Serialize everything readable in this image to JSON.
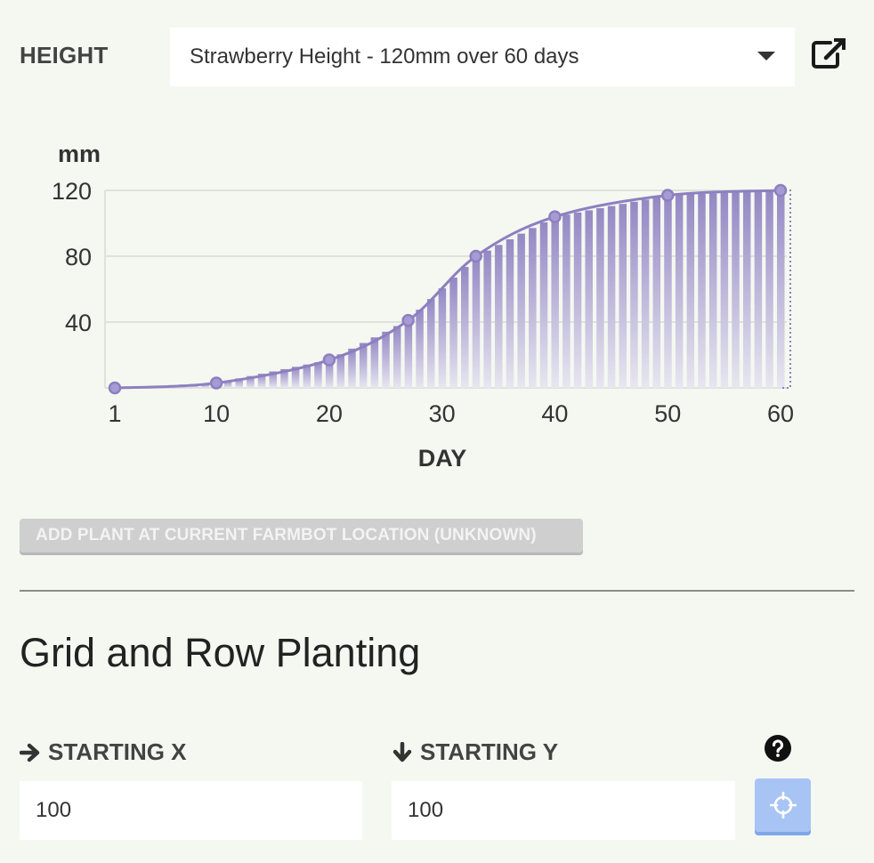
{
  "height_section": {
    "label": "HEIGHT",
    "selected_curve": "Strawberry Height - 120mm over 60 days"
  },
  "chart_data": {
    "type": "area",
    "title": "",
    "ylabel": "mm",
    "xlabel": "DAY",
    "xlim": [
      1,
      60
    ],
    "ylim": [
      0,
      120
    ],
    "x_ticks": [
      1,
      10,
      20,
      30,
      40,
      50,
      60
    ],
    "y_ticks": [
      40,
      80,
      120
    ],
    "grid": true,
    "points": [
      {
        "x": 1,
        "y": 0
      },
      {
        "x": 10,
        "y": 3
      },
      {
        "x": 20,
        "y": 17
      },
      {
        "x": 27,
        "y": 41
      },
      {
        "x": 33,
        "y": 80
      },
      {
        "x": 40,
        "y": 104
      },
      {
        "x": 50,
        "y": 117
      },
      {
        "x": 60,
        "y": 120
      }
    ],
    "series_color": "#8e7fc0"
  },
  "add_plant_button": "ADD PLANT AT CURRENT FARMBOT LOCATION (UNKNOWN)",
  "grid_section": {
    "title": "Grid and Row Planting",
    "starting_x_label": "STARTING X",
    "starting_y_label": "STARTING Y",
    "starting_x_value": "100",
    "starting_y_value": "100"
  },
  "icons": {
    "open_link": "external-link-icon",
    "help": "question-circle-icon",
    "locate": "crosshairs-icon",
    "x_arrow": "arrow-right-icon",
    "y_arrow": "arrow-down-icon"
  },
  "colors": {
    "background": "#f4f8f1",
    "curve": "#8e7fc0",
    "locate_button": "#a8c4f5",
    "disabled_button": "#cfcfcf"
  }
}
